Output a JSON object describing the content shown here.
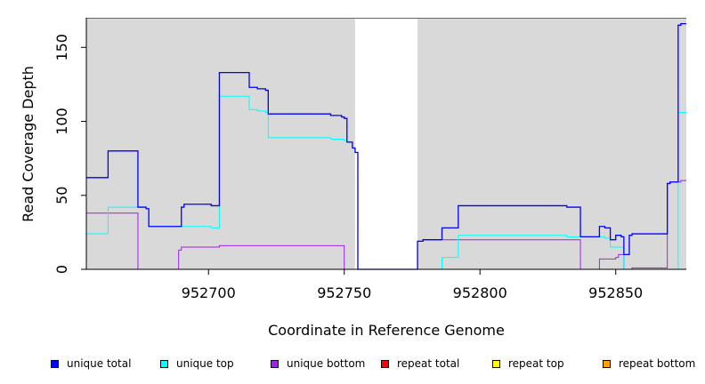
{
  "chart_data": {
    "type": "line",
    "step": true,
    "xlabel": "Coordinate in Reference Genome",
    "ylabel": "Read Coverage Depth",
    "xlim": [
      952655,
      952876
    ],
    "ylim": [
      0,
      170
    ],
    "xticks": [
      952700,
      952750,
      952800,
      952850
    ],
    "yticks": [
      0,
      50,
      100,
      150
    ],
    "background_color": "#d9d9d9",
    "gap_region": [
      952754,
      952777
    ],
    "legend_placement": "bottom",
    "series": [
      {
        "name": "unique total",
        "color": "#0000ff",
        "points": [
          [
            952655,
            62
          ],
          [
            952663,
            62
          ],
          [
            952663,
            80
          ],
          [
            952674,
            80
          ],
          [
            952674,
            42
          ],
          [
            952677,
            42
          ],
          [
            952677,
            41
          ],
          [
            952678,
            41
          ],
          [
            952678,
            29
          ],
          [
            952690,
            29
          ],
          [
            952690,
            42
          ],
          [
            952691,
            42
          ],
          [
            952691,
            44
          ],
          [
            952701,
            44
          ],
          [
            952701,
            43
          ],
          [
            952704,
            43
          ],
          [
            952704,
            133
          ],
          [
            952715,
            133
          ],
          [
            952715,
            123
          ],
          [
            952718,
            123
          ],
          [
            952718,
            122
          ],
          [
            952721,
            122
          ],
          [
            952721,
            121
          ],
          [
            952722,
            121
          ],
          [
            952722,
            105
          ],
          [
            952745,
            105
          ],
          [
            952745,
            104
          ],
          [
            952749,
            104
          ],
          [
            952749,
            103
          ],
          [
            952750,
            103
          ],
          [
            952750,
            102
          ],
          [
            952751,
            102
          ],
          [
            952751,
            86
          ],
          [
            952753,
            86
          ],
          [
            952753,
            82
          ],
          [
            952754,
            82
          ],
          [
            952754,
            79
          ],
          [
            952755,
            79
          ],
          [
            952755,
            0
          ],
          [
            952777,
            0
          ],
          [
            952777,
            19
          ],
          [
            952779,
            19
          ],
          [
            952779,
            20
          ],
          [
            952786,
            20
          ],
          [
            952786,
            28
          ],
          [
            952792,
            28
          ],
          [
            952792,
            43
          ],
          [
            952832,
            43
          ],
          [
            952832,
            42
          ],
          [
            952837,
            42
          ],
          [
            952837,
            22
          ],
          [
            952844,
            22
          ],
          [
            952844,
            29
          ],
          [
            952846,
            29
          ],
          [
            952846,
            28
          ],
          [
            952848,
            28
          ],
          [
            952848,
            20
          ],
          [
            952850,
            20
          ],
          [
            952850,
            23
          ],
          [
            952852,
            23
          ],
          [
            952852,
            22
          ],
          [
            952853,
            22
          ],
          [
            952853,
            10
          ],
          [
            952855,
            10
          ],
          [
            952855,
            23
          ],
          [
            952856,
            23
          ],
          [
            952856,
            24
          ],
          [
            952869,
            24
          ],
          [
            952869,
            58
          ],
          [
            952870,
            58
          ],
          [
            952870,
            59
          ],
          [
            952873,
            59
          ],
          [
            952873,
            165
          ],
          [
            952874,
            165
          ],
          [
            952874,
            166
          ],
          [
            952876,
            166
          ]
        ]
      },
      {
        "name": "unique top",
        "color": "#00ffff",
        "points": [
          [
            952655,
            24
          ],
          [
            952663,
            24
          ],
          [
            952663,
            42
          ],
          [
            952677,
            42
          ],
          [
            952677,
            41
          ],
          [
            952678,
            41
          ],
          [
            952678,
            29
          ],
          [
            952701,
            29
          ],
          [
            952701,
            28
          ],
          [
            952704,
            28
          ],
          [
            952704,
            117
          ],
          [
            952715,
            117
          ],
          [
            952715,
            108
          ],
          [
            952718,
            108
          ],
          [
            952718,
            107
          ],
          [
            952721,
            107
          ],
          [
            952721,
            106
          ],
          [
            952722,
            106
          ],
          [
            952722,
            89
          ],
          [
            952745,
            89
          ],
          [
            952745,
            88
          ],
          [
            952750,
            88
          ],
          [
            952750,
            87
          ],
          [
            952751,
            87
          ],
          [
            952751,
            86
          ],
          [
            952753,
            86
          ],
          [
            952753,
            82
          ],
          [
            952754,
            82
          ],
          [
            952754,
            79
          ],
          [
            952755,
            79
          ],
          [
            952755,
            0
          ],
          [
            952786,
            0
          ],
          [
            952786,
            8
          ],
          [
            952792,
            8
          ],
          [
            952792,
            23
          ],
          [
            952832,
            23
          ],
          [
            952832,
            22
          ],
          [
            952837,
            22
          ],
          [
            952837,
            22
          ],
          [
            952846,
            22
          ],
          [
            952846,
            21
          ],
          [
            952848,
            21
          ],
          [
            952848,
            15
          ],
          [
            952853,
            15
          ],
          [
            952853,
            0
          ],
          [
            952873,
            0
          ],
          [
            952873,
            106
          ],
          [
            952876,
            106
          ]
        ]
      },
      {
        "name": "unique bottom",
        "color": "#a020f0",
        "points": [
          [
            952655,
            38
          ],
          [
            952674,
            38
          ],
          [
            952674,
            0
          ],
          [
            952689,
            0
          ],
          [
            952689,
            13
          ],
          [
            952690,
            13
          ],
          [
            952690,
            15
          ],
          [
            952704,
            15
          ],
          [
            952704,
            16
          ],
          [
            952750,
            16
          ],
          [
            952750,
            0
          ],
          [
            952777,
            0
          ],
          [
            952777,
            19
          ],
          [
            952779,
            19
          ],
          [
            952779,
            20
          ],
          [
            952837,
            20
          ],
          [
            952837,
            0
          ],
          [
            952844,
            0
          ],
          [
            952844,
            7
          ],
          [
            952850,
            7
          ],
          [
            952850,
            8
          ],
          [
            952851,
            8
          ],
          [
            952851,
            10
          ],
          [
            952853,
            10
          ],
          [
            952853,
            0
          ],
          [
            952856,
            0
          ],
          [
            952856,
            1
          ],
          [
            952869,
            1
          ],
          [
            952869,
            58
          ],
          [
            952870,
            58
          ],
          [
            952870,
            59
          ],
          [
            952874,
            59
          ],
          [
            952874,
            60
          ],
          [
            952876,
            60
          ]
        ]
      },
      {
        "name": "repeat total",
        "color": "#ff0000",
        "points": [
          [
            952655,
            0
          ],
          [
            952876,
            0
          ]
        ]
      },
      {
        "name": "repeat top",
        "color": "#ffff00",
        "points": [
          [
            952655,
            0
          ],
          [
            952876,
            0
          ]
        ]
      },
      {
        "name": "repeat bottom",
        "color": "#ffa500",
        "points": [
          [
            952655,
            0
          ],
          [
            952876,
            0
          ]
        ]
      }
    ]
  }
}
